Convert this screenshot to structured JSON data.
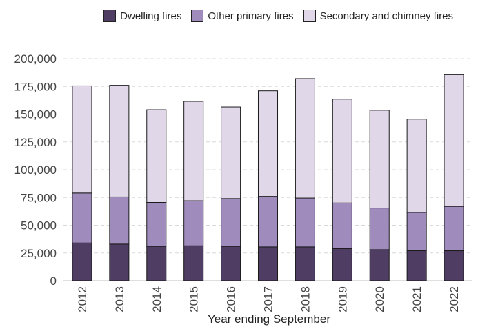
{
  "chart_data": {
    "type": "bar",
    "stacked": true,
    "categories": [
      "2012",
      "2013",
      "2014",
      "2015",
      "2016",
      "2017",
      "2018",
      "2019",
      "2020",
      "2021",
      "2022"
    ],
    "series": [
      {
        "name": "Dwelling fires",
        "color": "#4f3d63",
        "values": [
          34000,
          33000,
          31000,
          31500,
          31000,
          30500,
          30500,
          29000,
          28000,
          27000,
          27000
        ]
      },
      {
        "name": "Other primary fires",
        "color": "#a08bbd",
        "values": [
          45000,
          42500,
          39500,
          40500,
          43000,
          45500,
          44000,
          41000,
          37500,
          34500,
          40000
        ]
      },
      {
        "name": "Secondary and chimney fires",
        "color": "#e0d8e8",
        "values": [
          96500,
          100500,
          83500,
          89500,
          82500,
          95000,
          107500,
          93500,
          88000,
          84000,
          118500
        ]
      }
    ],
    "xlabel": "Year ending September",
    "ylabel": "",
    "ylim": [
      0,
      200000
    ],
    "yticks": [
      0,
      25000,
      50000,
      75000,
      100000,
      125000,
      150000,
      175000,
      200000
    ],
    "ytick_labels": [
      "0",
      "25,000",
      "50,000",
      "75,000",
      "100,000",
      "125,000",
      "150,000",
      "175,000",
      "200,000"
    ],
    "grid": true,
    "legend_position": "top-right"
  }
}
